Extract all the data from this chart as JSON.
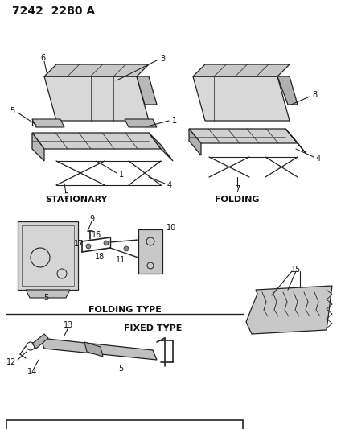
{
  "title": "7242  2280 A",
  "bg_color": "#ffffff",
  "line_color": "#222222",
  "text_color": "#111111",
  "stationary_label": "STATIONARY",
  "folding_label": "FOLDING",
  "folding_type_label": "FOLDING TYPE",
  "fixed_type_label": "FIXED TYPE"
}
